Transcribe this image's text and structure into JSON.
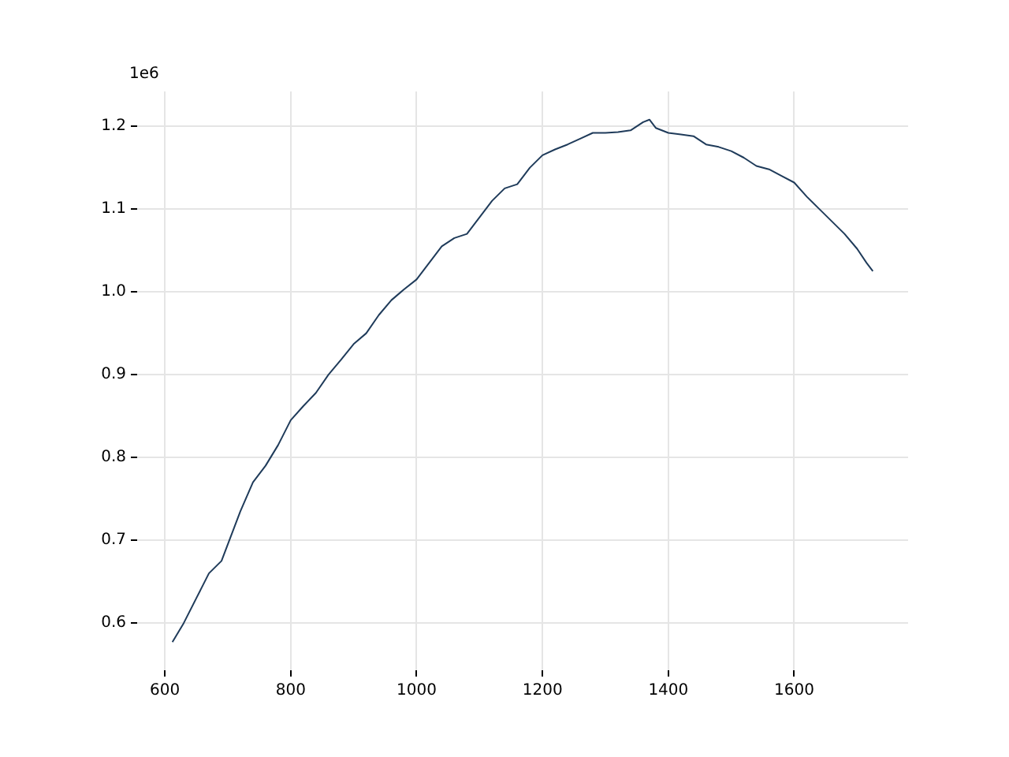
{
  "chart_data": {
    "type": "line",
    "annotations": [
      "1e6"
    ],
    "x": [
      612,
      630,
      650,
      670,
      690,
      700,
      720,
      740,
      760,
      780,
      800,
      820,
      840,
      860,
      880,
      900,
      920,
      940,
      960,
      980,
      1000,
      1020,
      1040,
      1060,
      1080,
      1100,
      1120,
      1140,
      1160,
      1180,
      1200,
      1220,
      1240,
      1260,
      1280,
      1300,
      1320,
      1340,
      1360,
      1370,
      1380,
      1400,
      1420,
      1440,
      1460,
      1480,
      1500,
      1520,
      1540,
      1560,
      1580,
      1600,
      1620,
      1640,
      1660,
      1680,
      1700,
      1715,
      1725
    ],
    "series": [
      {
        "color": "#1f3b5a",
        "values": [
          0.577,
          0.6,
          0.63,
          0.66,
          0.675,
          0.695,
          0.735,
          0.77,
          0.79,
          0.815,
          0.845,
          0.862,
          0.878,
          0.9,
          0.918,
          0.937,
          0.95,
          0.972,
          0.99,
          1.003,
          1.015,
          1.035,
          1.055,
          1.065,
          1.07,
          1.09,
          1.11,
          1.125,
          1.13,
          1.15,
          1.165,
          1.172,
          1.178,
          1.185,
          1.192,
          1.192,
          1.193,
          1.195,
          1.205,
          1.208,
          1.198,
          1.192,
          1.19,
          1.188,
          1.178,
          1.175,
          1.17,
          1.162,
          1.152,
          1.148,
          1.14,
          1.132,
          1.115,
          1.1,
          1.085,
          1.07,
          1.052,
          1.035,
          1.025
        ]
      }
    ],
    "xlim": [
      556,
      1781
    ],
    "ylim": [
      0.543,
      1.242
    ],
    "xticks": [
      600,
      800,
      1000,
      1200,
      1400,
      1600
    ],
    "yticks": [
      0.6,
      0.7,
      0.8,
      0.9,
      {
        "value": 1,
        "label": "1.0"
      },
      1.1,
      1.2
    ],
    "grid": true,
    "marker": "none",
    "line_style": "solid"
  }
}
